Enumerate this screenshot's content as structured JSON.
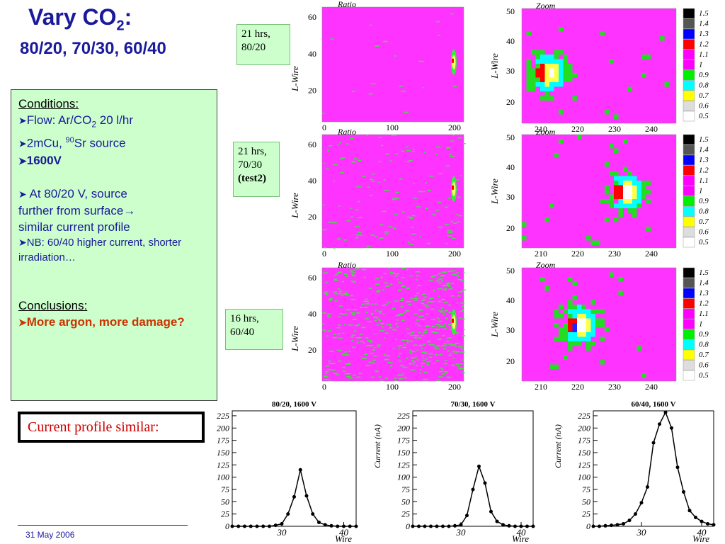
{
  "title": {
    "main": "Vary CO",
    "sub": "2",
    "colon": ":",
    "subtitle": "80/20, 70/30, 60/40"
  },
  "runs": [
    {
      "hrs": "21 hrs,",
      "mix": "80/20",
      "extra": ""
    },
    {
      "hrs": "21 hrs,",
      "mix": "70/30",
      "extra": "(test2)"
    },
    {
      "hrs": "16 hrs,",
      "mix": "60/40",
      "extra": ""
    }
  ],
  "conditions": {
    "heading": "Conditions:",
    "flow_pre": "Flow: Ar/CO",
    "flow_sub": "2",
    "flow_post": " 20 l/hr",
    "source_pre": "2mCu, ",
    "source_sup": "90",
    "source_post": "Sr source",
    "voltage": "1600V",
    "note1_a": " At 80/20 V, source",
    "note1_b": "further from surface",
    "note1_c": "similar current profile",
    "note2": "NB: 60/40 higher current, shorter irradiation…"
  },
  "conclusions": {
    "heading": "Conclusions:",
    "text": "More argon, more damage?"
  },
  "profile_label": "Current profile similar:",
  "date": "31 May 2006",
  "maps": {
    "ratio_label": "Ratio",
    "zoom_label": "Zoom",
    "ylabel": "L-Wire",
    "ratio_xticks": [
      "0",
      "100",
      "200"
    ],
    "ratio_yticks": [
      "60",
      "40",
      "20"
    ],
    "zoom_xticks": [
      "210",
      "220",
      "230",
      "240"
    ],
    "zoom_yticks": [
      "50",
      "40",
      "30",
      "20"
    ],
    "colorscale": [
      "1.5",
      "1.4",
      "1.3",
      "1.2",
      "1.1",
      "1",
      "0.9",
      "0.8",
      "0.7",
      "0.6",
      "0.5"
    ],
    "colorscale_colors": [
      "#000000",
      "#555555",
      "#0000ff",
      "#ff0000",
      "#ff00ff",
      "#ff00ff",
      "#00ee00",
      "#00ffff",
      "#ffff00",
      "#dddddd",
      "#ffffff"
    ],
    "background": "#ff33ff"
  },
  "chart_data": [
    {
      "type": "line",
      "title": "80/20, 1600 V",
      "xlabel": "Wire",
      "ylabel": "",
      "xlim": [
        22,
        42
      ],
      "ylim": [
        0,
        235
      ],
      "yticks": [
        "0",
        "25",
        "50",
        "75",
        "100",
        "125",
        "150",
        "175",
        "200",
        "225"
      ],
      "xticks": [
        "30",
        "40"
      ],
      "series": [
        {
          "x": [
            22,
            23,
            24,
            25,
            26,
            27,
            28,
            29,
            30,
            31,
            32,
            33,
            34,
            35,
            36,
            37,
            38,
            39,
            40,
            41,
            42
          ],
          "values": [
            0,
            0,
            0,
            0,
            0,
            0,
            0,
            2,
            5,
            25,
            60,
            115,
            62,
            25,
            8,
            3,
            1,
            0,
            0,
            0,
            0
          ]
        }
      ]
    },
    {
      "type": "line",
      "title": "70/30, 1600 V",
      "xlabel": "Wire",
      "ylabel": "Current (nA)",
      "xlim": [
        22,
        42
      ],
      "ylim": [
        0,
        235
      ],
      "yticks": [
        "0",
        "25",
        "50",
        "75",
        "100",
        "125",
        "150",
        "175",
        "200",
        "225"
      ],
      "xticks": [
        "30",
        "40"
      ],
      "series": [
        {
          "x": [
            22,
            23,
            24,
            25,
            26,
            27,
            28,
            29,
            30,
            31,
            32,
            33,
            34,
            35,
            36,
            37,
            38,
            39,
            40,
            41,
            42
          ],
          "values": [
            0,
            0,
            0,
            0,
            0,
            0,
            0,
            1,
            3,
            22,
            75,
            122,
            88,
            30,
            10,
            3,
            1,
            0,
            0,
            0,
            0
          ]
        }
      ]
    },
    {
      "type": "line",
      "title": "60/40, 1600 V",
      "xlabel": "Wire",
      "ylabel": "Current (nA)",
      "xlim": [
        22,
        42
      ],
      "ylim": [
        0,
        235
      ],
      "yticks": [
        "0",
        "25",
        "50",
        "75",
        "100",
        "125",
        "150",
        "175",
        "200",
        "225"
      ],
      "xticks": [
        "30",
        "40"
      ],
      "series": [
        {
          "x": [
            22,
            23,
            24,
            25,
            26,
            27,
            28,
            29,
            30,
            31,
            32,
            33,
            34,
            35,
            36,
            37,
            38,
            39,
            40,
            41,
            42
          ],
          "values": [
            0,
            0,
            1,
            2,
            3,
            5,
            12,
            25,
            48,
            80,
            170,
            208,
            232,
            200,
            120,
            70,
            32,
            18,
            10,
            5,
            3
          ]
        }
      ]
    }
  ]
}
